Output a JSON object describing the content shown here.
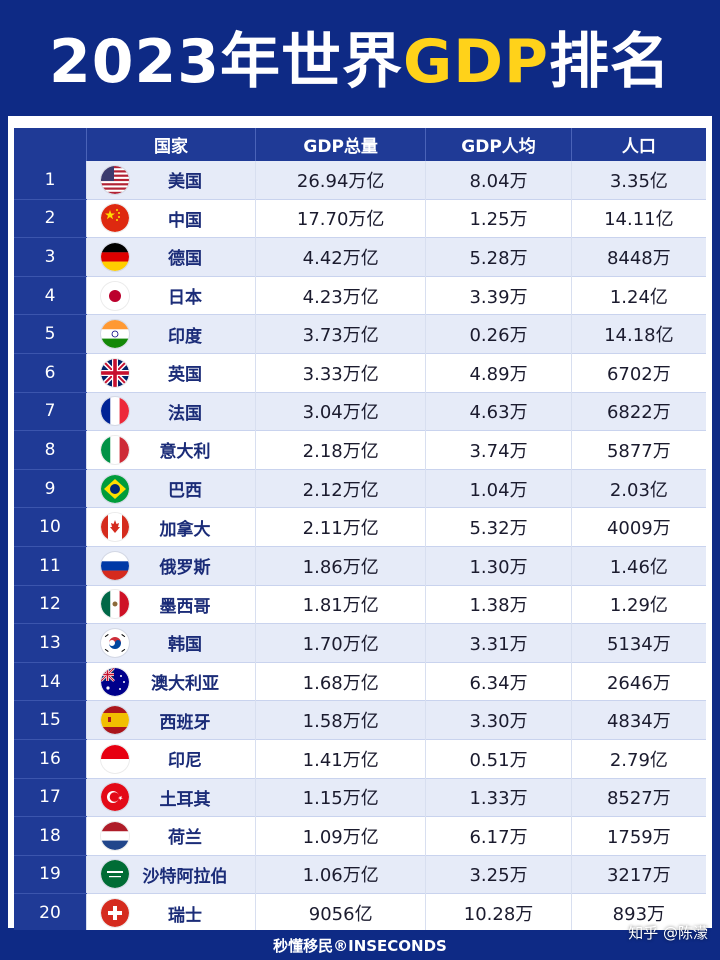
{
  "title": {
    "part1": "2023年世界",
    "highlight": "GDP",
    "part2": "排名"
  },
  "table": {
    "headers": {
      "rank": "",
      "country": "国家",
      "gdp_total": "GDP总量",
      "gdp_per_capita": "GDP人均",
      "population": "人口"
    },
    "rows": [
      {
        "rank": "1",
        "country": "美国",
        "gdp": "26.94万亿",
        "per_capita": "8.04万",
        "population": "3.35亿",
        "flag": "us-flag-icon"
      },
      {
        "rank": "2",
        "country": "中国",
        "gdp": "17.70万亿",
        "per_capita": "1.25万",
        "population": "14.11亿",
        "flag": "china-flag-icon"
      },
      {
        "rank": "3",
        "country": "德国",
        "gdp": "4.42万亿",
        "per_capita": "5.28万",
        "population": "8448万",
        "flag": "germany-flag-icon"
      },
      {
        "rank": "4",
        "country": "日本",
        "gdp": "4.23万亿",
        "per_capita": "3.39万",
        "population": "1.24亿",
        "flag": "japan-flag-icon"
      },
      {
        "rank": "5",
        "country": "印度",
        "gdp": "3.73万亿",
        "per_capita": "0.26万",
        "population": "14.18亿",
        "flag": "india-flag-icon"
      },
      {
        "rank": "6",
        "country": "英国",
        "gdp": "3.33万亿",
        "per_capita": "4.89万",
        "population": "6702万",
        "flag": "uk-flag-icon"
      },
      {
        "rank": "7",
        "country": "法国",
        "gdp": "3.04万亿",
        "per_capita": "4.63万",
        "population": "6822万",
        "flag": "france-flag-icon"
      },
      {
        "rank": "8",
        "country": "意大利",
        "gdp": "2.18万亿",
        "per_capita": "3.74万",
        "population": "5877万",
        "flag": "italy-flag-icon"
      },
      {
        "rank": "9",
        "country": "巴西",
        "gdp": "2.12万亿",
        "per_capita": "1.04万",
        "population": "2.03亿",
        "flag": "brazil-flag-icon"
      },
      {
        "rank": "10",
        "country": "加拿大",
        "gdp": "2.11万亿",
        "per_capita": "5.32万",
        "population": "4009万",
        "flag": "canada-flag-icon"
      },
      {
        "rank": "11",
        "country": "俄罗斯",
        "gdp": "1.86万亿",
        "per_capita": "1.30万",
        "population": "1.46亿",
        "flag": "russia-flag-icon"
      },
      {
        "rank": "12",
        "country": "墨西哥",
        "gdp": "1.81万亿",
        "per_capita": "1.38万",
        "population": "1.29亿",
        "flag": "mexico-flag-icon"
      },
      {
        "rank": "13",
        "country": "韩国",
        "gdp": "1.70万亿",
        "per_capita": "3.31万",
        "population": "5134万",
        "flag": "korea-flag-icon"
      },
      {
        "rank": "14",
        "country": "澳大利亚",
        "gdp": "1.68万亿",
        "per_capita": "6.34万",
        "population": "2646万",
        "flag": "australia-flag-icon"
      },
      {
        "rank": "15",
        "country": "西班牙",
        "gdp": "1.58万亿",
        "per_capita": "3.30万",
        "population": "4834万",
        "flag": "spain-flag-icon"
      },
      {
        "rank": "16",
        "country": "印尼",
        "gdp": "1.41万亿",
        "per_capita": "0.51万",
        "population": "2.79亿",
        "flag": "indonesia-flag-icon"
      },
      {
        "rank": "17",
        "country": "土耳其",
        "gdp": "1.15万亿",
        "per_capita": "1.33万",
        "population": "8527万",
        "flag": "turkey-flag-icon"
      },
      {
        "rank": "18",
        "country": "荷兰",
        "gdp": "1.09万亿",
        "per_capita": "6.17万",
        "population": "1759万",
        "flag": "netherlands-flag-icon"
      },
      {
        "rank": "19",
        "country": "沙特阿拉伯",
        "gdp": "1.06万亿",
        "per_capita": "3.25万",
        "population": "3217万",
        "flag": "saudi-flag-icon"
      },
      {
        "rank": "20",
        "country": "瑞士",
        "gdp": "9056亿",
        "per_capita": "10.28万",
        "population": "893万",
        "flag": "switzerland-flag-icon"
      }
    ]
  },
  "watermark": {
    "en": "INSECONDS",
    "cn": "秒懂移民"
  },
  "footer": {
    "text": "秒懂移民®INSECONDS",
    "credit": "知乎 @陈濛"
  },
  "colors": {
    "navy": "#0e2a85",
    "header_blue": "#1f3a96",
    "highlight_yellow": "#ffd21a",
    "row_alt": "#e6ebf8"
  }
}
